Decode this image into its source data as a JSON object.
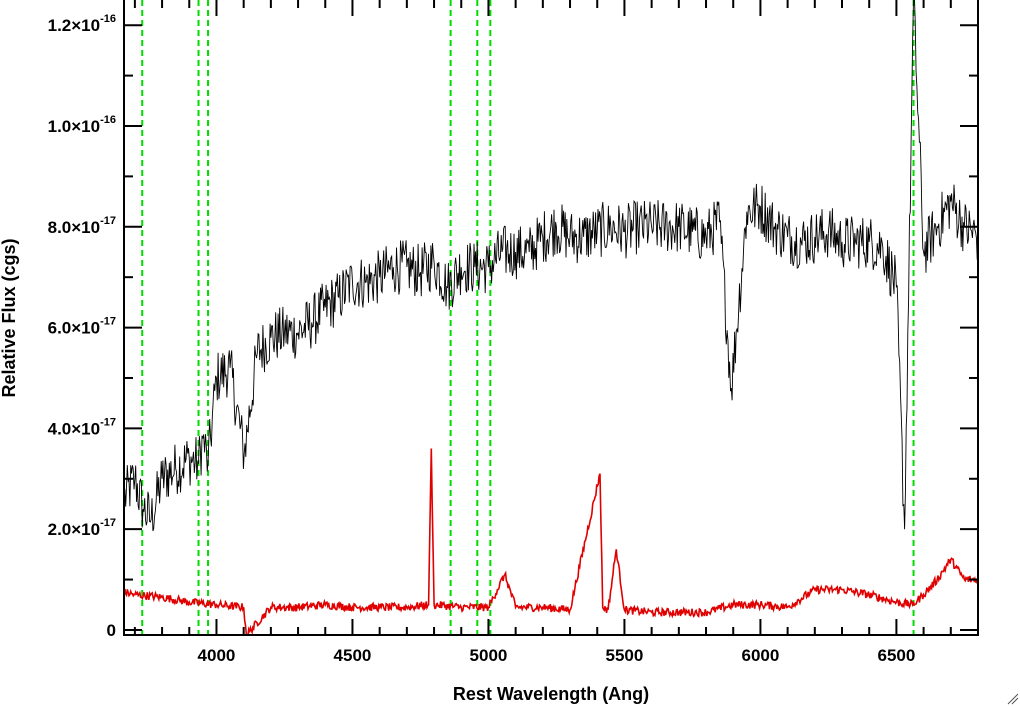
{
  "chart_data": {
    "type": "line",
    "xlabel": "Rest Wavelength (Ang)",
    "ylabel": "Relative Flux (cgs)",
    "xlim": [
      3660,
      6800
    ],
    "ylim": [
      -1e-18,
      1.25e-16
    ],
    "x_ticks": [
      {
        "value": 4000,
        "label": "4000"
      },
      {
        "value": 4500,
        "label": "4500"
      },
      {
        "value": 5000,
        "label": "5000"
      },
      {
        "value": 5500,
        "label": "5500"
      },
      {
        "value": 6000,
        "label": "6000"
      },
      {
        "value": 6500,
        "label": "6500"
      }
    ],
    "y_ticks": [
      {
        "value": 0,
        "mant": "0",
        "exp": ""
      },
      {
        "value": 2e-17,
        "mant": "2.0×10",
        "exp": "-17"
      },
      {
        "value": 4e-17,
        "mant": "4.0×10",
        "exp": "-17"
      },
      {
        "value": 6e-17,
        "mant": "6.0×10",
        "exp": "-17"
      },
      {
        "value": 8e-17,
        "mant": "8.0×10",
        "exp": "-17"
      },
      {
        "value": 1e-16,
        "mant": "1.0×10",
        "exp": "-16"
      },
      {
        "value": 1.2e-16,
        "mant": "1.2×10",
        "exp": "-16"
      }
    ],
    "grid": false,
    "legend": "none",
    "vlines": [
      3727,
      3934,
      3969,
      4861,
      4959,
      5007,
      6563
    ],
    "series": [
      {
        "color": "#000000",
        "x": [
          3660,
          3700,
          3730,
          3760,
          3800,
          3850,
          3900,
          3934,
          3950,
          3969,
          4000,
          4050,
          4102,
          4150,
          4200,
          4250,
          4300,
          4350,
          4400,
          4450,
          4500,
          4550,
          4600,
          4650,
          4700,
          4750,
          4800,
          4850,
          4900,
          4950,
          5000,
          5050,
          5100,
          5150,
          5200,
          5250,
          5300,
          5350,
          5400,
          5450,
          5500,
          5550,
          5600,
          5650,
          5700,
          5750,
          5800,
          5850,
          5893,
          5950,
          6000,
          6050,
          6100,
          6150,
          6200,
          6250,
          6300,
          6350,
          6400,
          6450,
          6500,
          6530,
          6563,
          6600,
          6650,
          6700,
          6750,
          6800
        ],
        "y": [
          2.6e-17,
          3e-17,
          2.4e-17,
          2.2e-17,
          3e-17,
          3.2e-17,
          3.4e-17,
          3.3e-17,
          3.8e-17,
          3.3e-17,
          5e-17,
          5.2e-17,
          3.5e-17,
          5.5e-17,
          5.8e-17,
          5.9e-17,
          5.9e-17,
          6.1e-17,
          6.4e-17,
          6.6e-17,
          6.9e-17,
          6.9e-17,
          7e-17,
          7.2e-17,
          7.2e-17,
          7.1e-17,
          7.3e-17,
          6.8e-17,
          7.2e-17,
          7.2e-17,
          7.2e-17,
          7.5e-17,
          7.5e-17,
          7.5e-17,
          7.8e-17,
          8e-17,
          7.8e-17,
          7.8e-17,
          7.9e-17,
          8e-17,
          7.9e-17,
          8e-17,
          8e-17,
          8e-17,
          8e-17,
          7.9e-17,
          7.8e-17,
          8.1e-17,
          4.8e-17,
          8.3e-17,
          8.4e-17,
          8e-17,
          7.8e-17,
          7.7e-17,
          7.8e-17,
          7.9e-17,
          7.7e-17,
          7.7e-17,
          7.7e-17,
          7.6e-17,
          6.8e-17,
          2e-17,
          1.25e-16,
          7.5e-17,
          8e-17,
          8.5e-17,
          8e-17,
          7.8e-17
        ]
      },
      {
        "color": "#e00000",
        "x": [
          3660,
          3700,
          3800,
          3900,
          4000,
          4100,
          4110,
          4200,
          4300,
          4400,
          4500,
          4600,
          4700,
          4780,
          4790,
          4800,
          4900,
          5000,
          5060,
          5100,
          5200,
          5300,
          5410,
          5420,
          5440,
          5470,
          5500,
          5600,
          5700,
          5800,
          5900,
          6000,
          6100,
          6200,
          6250,
          6300,
          6400,
          6500,
          6560,
          6600,
          6650,
          6700,
          6750,
          6800
        ],
        "y": [
          7.5e-18,
          7e-18,
          6.5e-18,
          5.5e-18,
          5e-18,
          4.5e-18,
          -1e-18,
          4.5e-18,
          4.5e-18,
          5e-18,
          4.5e-18,
          4.5e-18,
          4.5e-18,
          5e-18,
          3.6e-17,
          5e-18,
          4.5e-18,
          4.5e-18,
          1.1e-17,
          4.5e-18,
          4.5e-18,
          4e-18,
          3.1e-17,
          4.5e-18,
          4e-18,
          1.6e-17,
          4e-18,
          3.5e-18,
          3.5e-18,
          3.5e-18,
          5e-18,
          5e-18,
          4.5e-18,
          8e-18,
          8e-18,
          8e-18,
          7e-18,
          5.5e-18,
          5e-18,
          7e-18,
          1e-17,
          1.4e-17,
          1e-17,
          1e-17
        ]
      }
    ]
  },
  "colors": {
    "spectrum": "#000000",
    "error": "#e00000",
    "lines": "#00dd00",
    "axes": "#000000"
  },
  "corner_icon": "resize-grip-icon"
}
